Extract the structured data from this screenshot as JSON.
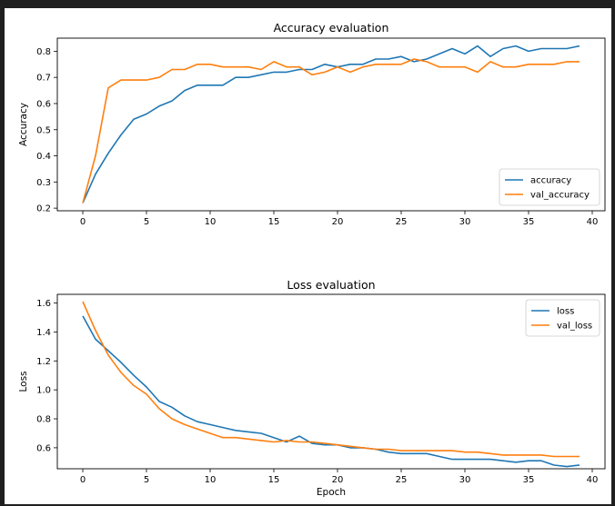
{
  "colors": {
    "series1": "#1f77b4",
    "series2": "#ff7f0e",
    "frame": "#1f1f1f"
  },
  "chart_data": [
    {
      "type": "line",
      "title": "Accuracy evaluation",
      "xlabel": "",
      "ylabel": "Accuracy",
      "xlim": [
        -2.0,
        41.0
      ],
      "ylim": [
        0.19,
        0.85
      ],
      "xticks": [
        0,
        5,
        10,
        15,
        20,
        25,
        30,
        35,
        40
      ],
      "yticks": [
        0.2,
        0.3,
        0.4,
        0.5,
        0.6,
        0.7,
        0.8
      ],
      "xtick_labels": [
        "0",
        "5",
        "10",
        "15",
        "20",
        "25",
        "30",
        "35",
        "40"
      ],
      "ytick_labels": [
        "0.2",
        "0.3",
        "0.4",
        "0.5",
        "0.6",
        "0.7",
        "0.8"
      ],
      "grid": false,
      "legend_position": "lower-right",
      "x": [
        0,
        1,
        2,
        3,
        4,
        5,
        6,
        7,
        8,
        9,
        10,
        11,
        12,
        13,
        14,
        15,
        16,
        17,
        18,
        19,
        20,
        21,
        22,
        23,
        24,
        25,
        26,
        27,
        28,
        29,
        30,
        31,
        32,
        33,
        34,
        35,
        36,
        37,
        38,
        39
      ],
      "series": [
        {
          "name": "accuracy",
          "values": [
            0.22,
            0.33,
            0.41,
            0.48,
            0.54,
            0.56,
            0.59,
            0.61,
            0.65,
            0.67,
            0.67,
            0.67,
            0.7,
            0.7,
            0.71,
            0.72,
            0.72,
            0.73,
            0.73,
            0.75,
            0.74,
            0.75,
            0.75,
            0.77,
            0.77,
            0.78,
            0.76,
            0.77,
            0.79,
            0.81,
            0.79,
            0.82,
            0.78,
            0.81,
            0.82,
            0.8,
            0.81,
            0.81,
            0.81,
            0.82
          ]
        },
        {
          "name": "val_accuracy",
          "values": [
            0.22,
            0.4,
            0.66,
            0.69,
            0.69,
            0.69,
            0.7,
            0.73,
            0.73,
            0.75,
            0.75,
            0.74,
            0.74,
            0.74,
            0.73,
            0.76,
            0.74,
            0.74,
            0.71,
            0.72,
            0.74,
            0.72,
            0.74,
            0.75,
            0.75,
            0.75,
            0.77,
            0.76,
            0.74,
            0.74,
            0.74,
            0.72,
            0.76,
            0.74,
            0.74,
            0.75,
            0.75,
            0.75,
            0.76,
            0.76
          ]
        }
      ]
    },
    {
      "type": "line",
      "title": "Loss evaluation",
      "xlabel": "Epoch",
      "ylabel": "Loss",
      "xlim": [
        -2.0,
        41.0
      ],
      "ylim": [
        0.455,
        1.66
      ],
      "xticks": [
        0,
        5,
        10,
        15,
        20,
        25,
        30,
        35,
        40
      ],
      "yticks": [
        0.6,
        0.8,
        1.0,
        1.2,
        1.4,
        1.6
      ],
      "xtick_labels": [
        "0",
        "5",
        "10",
        "15",
        "20",
        "25",
        "30",
        "35",
        "40"
      ],
      "ytick_labels": [
        "0.6",
        "0.8",
        "1.0",
        "1.2",
        "1.4",
        "1.6"
      ],
      "grid": false,
      "legend_position": "upper-right",
      "x": [
        0,
        1,
        2,
        3,
        4,
        5,
        6,
        7,
        8,
        9,
        10,
        11,
        12,
        13,
        14,
        15,
        16,
        17,
        18,
        19,
        20,
        21,
        22,
        23,
        24,
        25,
        26,
        27,
        28,
        29,
        30,
        31,
        32,
        33,
        34,
        35,
        36,
        37,
        38,
        39
      ],
      "series": [
        {
          "name": "loss",
          "values": [
            1.51,
            1.35,
            1.27,
            1.19,
            1.1,
            1.02,
            0.92,
            0.88,
            0.82,
            0.78,
            0.76,
            0.74,
            0.72,
            0.71,
            0.7,
            0.67,
            0.64,
            0.68,
            0.63,
            0.62,
            0.62,
            0.6,
            0.6,
            0.59,
            0.57,
            0.56,
            0.56,
            0.56,
            0.54,
            0.52,
            0.52,
            0.52,
            0.52,
            0.51,
            0.5,
            0.51,
            0.51,
            0.48,
            0.47,
            0.48
          ]
        },
        {
          "name": "val_loss",
          "values": [
            1.61,
            1.41,
            1.24,
            1.12,
            1.03,
            0.97,
            0.87,
            0.8,
            0.76,
            0.73,
            0.7,
            0.67,
            0.67,
            0.66,
            0.65,
            0.64,
            0.65,
            0.64,
            0.64,
            0.63,
            0.62,
            0.61,
            0.6,
            0.59,
            0.59,
            0.58,
            0.58,
            0.58,
            0.58,
            0.58,
            0.57,
            0.57,
            0.56,
            0.55,
            0.55,
            0.55,
            0.55,
            0.54,
            0.54,
            0.54
          ]
        }
      ]
    }
  ]
}
